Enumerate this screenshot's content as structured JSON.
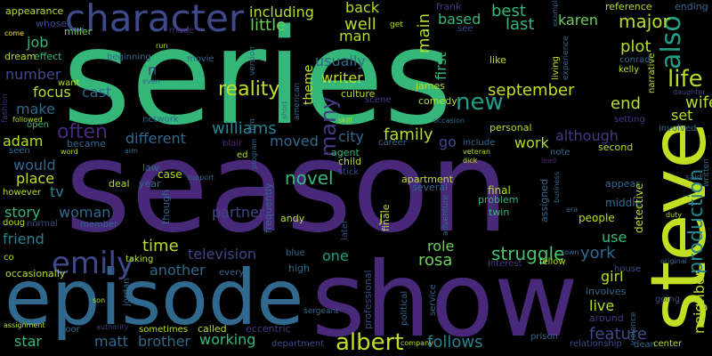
{
  "words": [
    {
      "text": "series",
      "color": "#35b779"
    },
    {
      "text": "season",
      "color": "#482878"
    },
    {
      "text": "show",
      "color": "#482878"
    },
    {
      "text": "episode",
      "color": "#31688e"
    },
    {
      "text": "steve",
      "color": "#c2df23"
    },
    {
      "text": "character",
      "color": "#3e4989"
    },
    {
      "text": "emily",
      "color": "#3e4989"
    },
    {
      "text": "albert",
      "color": "#c2df23"
    },
    {
      "text": "new",
      "color": "#1f9e89"
    },
    {
      "text": "also",
      "color": "#1f9e89"
    },
    {
      "text": "production",
      "color": "#26828e"
    },
    {
      "text": "life",
      "color": "#b5de2b"
    },
    {
      "text": "reality",
      "color": "#c2df23"
    },
    {
      "text": "september",
      "color": "#c2df23"
    },
    {
      "text": "often",
      "color": "#482878"
    },
    {
      "text": "family",
      "color": "#b5de2b"
    },
    {
      "text": "novel",
      "color": "#35b779"
    },
    {
      "text": "many",
      "color": "#443983"
    },
    {
      "text": "williams",
      "color": "#26828e"
    },
    {
      "text": "struggle",
      "color": "#4ac16d"
    },
    {
      "text": "york",
      "color": "#31688e"
    },
    {
      "text": "feature",
      "color": "#3e4989"
    },
    {
      "text": "follows",
      "color": "#26828e"
    },
    {
      "text": "matt",
      "color": "#31688e"
    },
    {
      "text": "brother",
      "color": "#31688e"
    },
    {
      "text": "working",
      "color": "#35b779"
    },
    {
      "text": "another",
      "color": "#31688e"
    },
    {
      "text": "television",
      "color": "#414487"
    },
    {
      "text": "partner",
      "color": "#414487"
    },
    {
      "text": "rosa",
      "color": "#6ece58"
    },
    {
      "text": "role",
      "color": "#6ece58"
    },
    {
      "text": "time",
      "color": "#b5de2b"
    },
    {
      "text": "little",
      "color": "#6ece58"
    },
    {
      "text": "including",
      "color": "#b5de2b"
    },
    {
      "text": "major",
      "color": "#b5de2b"
    },
    {
      "text": "karen",
      "color": "#6ece58"
    },
    {
      "text": "best",
      "color": "#35b779"
    },
    {
      "text": "last",
      "color": "#35b779"
    },
    {
      "text": "based",
      "color": "#35b779"
    },
    {
      "text": "back",
      "color": "#b5de2b"
    },
    {
      "text": "well",
      "color": "#b5de2b"
    },
    {
      "text": "main",
      "color": "#b5de2b"
    },
    {
      "text": "first",
      "color": "#35b779"
    },
    {
      "text": "man",
      "color": "#b5de2b"
    },
    {
      "text": "usually",
      "color": "#31688e"
    },
    {
      "text": "writer",
      "color": "#c2df23"
    },
    {
      "text": "theme",
      "color": "#b5de2b"
    },
    {
      "text": "job",
      "color": "#35b779"
    },
    {
      "text": "number",
      "color": "#3e4989"
    },
    {
      "text": "focus",
      "color": "#b5de2b"
    },
    {
      "text": "cast",
      "color": "#31688e"
    },
    {
      "text": "make",
      "color": "#31688e"
    },
    {
      "text": "adam",
      "color": "#b5de2b"
    },
    {
      "text": "would",
      "color": "#31688e"
    },
    {
      "text": "place",
      "color": "#c2df23"
    },
    {
      "text": "story",
      "color": "#35b779"
    },
    {
      "text": "woman",
      "color": "#31688e"
    },
    {
      "text": "friend",
      "color": "#26828e"
    },
    {
      "text": "tv",
      "color": "#26828e"
    },
    {
      "text": "different",
      "color": "#31688e"
    },
    {
      "text": "moved",
      "color": "#31688e"
    },
    {
      "text": "city",
      "color": "#31688e"
    },
    {
      "text": "work",
      "color": "#b5de2b"
    },
    {
      "text": "although",
      "color": "#443983"
    },
    {
      "text": "plot",
      "color": "#b5de2b"
    },
    {
      "text": "end",
      "color": "#b5de2b"
    },
    {
      "text": "wife",
      "color": "#b5de2b"
    },
    {
      "text": "set",
      "color": "#b5de2b"
    },
    {
      "text": "live",
      "color": "#b5de2b"
    },
    {
      "text": "girl",
      "color": "#b5de2b"
    },
    {
      "text": "use",
      "color": "#35b779"
    },
    {
      "text": "neighbor",
      "color": "#b5de2b"
    },
    {
      "text": "star",
      "color": "#35b779"
    },
    {
      "text": "one",
      "color": "#1f9e89"
    },
    {
      "text": "go",
      "color": "#3e4989"
    },
    {
      "text": "j",
      "color": "#b5de2b"
    },
    {
      "text": "n",
      "color": "#3e4989"
    },
    {
      "text": "appearance",
      "color": "#b5de2b"
    },
    {
      "text": "whose",
      "color": "#3e4989"
    },
    {
      "text": "miller",
      "color": "#6ece58"
    },
    {
      "text": "effect",
      "color": "#35b779"
    },
    {
      "text": "dream",
      "color": "#b5de2b"
    },
    {
      "text": "want",
      "color": "#b5de2b"
    },
    {
      "text": "beginning",
      "color": "#31688e"
    },
    {
      "text": "movie",
      "color": "#31688e"
    },
    {
      "text": "come",
      "color": "#fde725"
    },
    {
      "text": "made",
      "color": "#482878"
    },
    {
      "text": "version",
      "color": "#31688e"
    },
    {
      "text": "film",
      "color": "#31688e"
    },
    {
      "text": "james",
      "color": "#b5de2b"
    },
    {
      "text": "culture",
      "color": "#b5de2b"
    },
    {
      "text": "scene",
      "color": "#443983"
    },
    {
      "text": "comedy",
      "color": "#b5de2b"
    },
    {
      "text": "personal",
      "color": "#b5de2b"
    },
    {
      "text": "career",
      "color": "#31688e"
    },
    {
      "text": "include",
      "color": "#31688e"
    },
    {
      "text": "second",
      "color": "#b5de2b"
    },
    {
      "text": "appear",
      "color": "#31688e"
    },
    {
      "text": "middle",
      "color": "#31688e"
    },
    {
      "text": "people",
      "color": "#b5de2b"
    },
    {
      "text": "detective",
      "color": "#c2df23"
    },
    {
      "text": "final",
      "color": "#b5de2b"
    },
    {
      "text": "problem",
      "color": "#35b779"
    },
    {
      "text": "twin",
      "color": "#35b779"
    },
    {
      "text": "several",
      "color": "#31688e"
    },
    {
      "text": "apartment",
      "color": "#c2df23"
    },
    {
      "text": "assigned",
      "color": "#31688e"
    },
    {
      "text": "frequently",
      "color": "#31688e"
    },
    {
      "text": "andy",
      "color": "#b5de2b"
    },
    {
      "text": "child",
      "color": "#b5de2b"
    },
    {
      "text": "stick",
      "color": "#3e4989"
    },
    {
      "text": "agent",
      "color": "#35b779"
    },
    {
      "text": "blair",
      "color": "#482878"
    },
    {
      "text": "law",
      "color": "#31688e"
    },
    {
      "text": "case",
      "color": "#b5de2b"
    },
    {
      "text": "deal",
      "color": "#b5de2b"
    },
    {
      "text": "year",
      "color": "#31688e"
    },
    {
      "text": "became",
      "color": "#31688e"
    },
    {
      "text": "network",
      "color": "#31688e"
    },
    {
      "text": "american",
      "color": "#31688e"
    },
    {
      "text": "frank",
      "color": "#443983"
    },
    {
      "text": "reference",
      "color": "#b5de2b"
    },
    {
      "text": "ending",
      "color": "#31688e"
    },
    {
      "text": "narrative",
      "color": "#b5de2b"
    },
    {
      "text": "conrad",
      "color": "#31688e"
    },
    {
      "text": "kelly",
      "color": "#b5de2b"
    },
    {
      "text": "setting",
      "color": "#443983"
    },
    {
      "text": "involved",
      "color": "#31688e"
    },
    {
      "text": "written",
      "color": "#31688e"
    },
    {
      "text": "said",
      "color": "#31688e"
    },
    {
      "text": "daughter",
      "color": "#3e4989"
    },
    {
      "text": "living",
      "color": "#c2df23"
    },
    {
      "text": "experience",
      "color": "#31688e"
    },
    {
      "text": "like",
      "color": "#c2df23"
    },
    {
      "text": "see",
      "color": "#3e4989"
    },
    {
      "text": "get",
      "color": "#b5de2b"
    },
    {
      "text": "even",
      "color": "#31688e"
    },
    {
      "text": "run",
      "color": "#b5de2b"
    },
    {
      "text": "fashion",
      "color": "#482878"
    },
    {
      "text": "followed",
      "color": "#b5de2b"
    },
    {
      "text": "open",
      "color": "#35b779"
    },
    {
      "text": "seen",
      "color": "#31688e"
    },
    {
      "text": "word",
      "color": "#b5de2b"
    },
    {
      "text": "however",
      "color": "#b5de2b"
    },
    {
      "text": "doug",
      "color": "#b5de2b"
    },
    {
      "text": "normal",
      "color": "#3e4989"
    },
    {
      "text": "member",
      "color": "#31688e"
    },
    {
      "text": "co",
      "color": "#b5de2b"
    },
    {
      "text": "occasionally",
      "color": "#b5de2b"
    },
    {
      "text": "taking",
      "color": "#b5de2b"
    },
    {
      "text": "every",
      "color": "#31688e"
    },
    {
      "text": "high",
      "color": "#31688e"
    },
    {
      "text": "blue",
      "color": "#31688e"
    },
    {
      "text": "later",
      "color": "#3e4989"
    },
    {
      "text": "finale",
      "color": "#b5de2b"
    },
    {
      "text": "adventure",
      "color": "#31688e"
    },
    {
      "text": "business",
      "color": "#31688e"
    },
    {
      "text": "interest",
      "color": "#443983"
    },
    {
      "text": "fellow",
      "color": "#b5de2b"
    },
    {
      "text": "involves",
      "color": "#31688e"
    },
    {
      "text": "around",
      "color": "#443983"
    },
    {
      "text": "house",
      "color": "#3e4989"
    },
    {
      "text": "going",
      "color": "#3e4989"
    },
    {
      "text": "duty",
      "color": "#b5de2b"
    },
    {
      "text": "original",
      "color": "#31688e"
    },
    {
      "text": "though",
      "color": "#31688e"
    },
    {
      "text": "jordan",
      "color": "#31688e"
    },
    {
      "text": "son",
      "color": "#b5de2b"
    },
    {
      "text": "authority",
      "color": "#443983"
    },
    {
      "text": "sometimes",
      "color": "#b5de2b"
    },
    {
      "text": "called",
      "color": "#b5de2b"
    },
    {
      "text": "eccentric",
      "color": "#443983"
    },
    {
      "text": "department",
      "color": "#3e4989"
    },
    {
      "text": "professional",
      "color": "#3e4989"
    },
    {
      "text": "political",
      "color": "#31688e"
    },
    {
      "text": "service",
      "color": "#31688e"
    },
    {
      "text": "prison",
      "color": "#31688e"
    },
    {
      "text": "relationship",
      "color": "#3e4989"
    },
    {
      "text": "violence",
      "color": "#31688e"
    },
    {
      "text": "dean",
      "color": "#31688e"
    },
    {
      "text": "center",
      "color": "#b5de2b"
    },
    {
      "text": "sergeant",
      "color": "#31688e"
    },
    {
      "text": "assignment",
      "color": "#b5de2b"
    },
    {
      "text": "door",
      "color": "#31688e"
    },
    {
      "text": "company",
      "color": "#b5de2b"
    },
    {
      "text": "skill",
      "color": "#b5de2b"
    },
    {
      "text": "occasion",
      "color": "#31688e"
    },
    {
      "text": "support",
      "color": "#31688e"
    },
    {
      "text": "program",
      "color": "#31688e"
    },
    {
      "text": "dick",
      "color": "#b5de2b"
    },
    {
      "text": "veteran",
      "color": "#b5de2b"
    },
    {
      "text": "note",
      "color": "#31688e"
    },
    {
      "text": "lead",
      "color": "#482878"
    },
    {
      "text": "era",
      "color": "#31688e"
    },
    {
      "text": "town",
      "color": "#31688e"
    },
    {
      "text": "example",
      "color": "#31688e"
    },
    {
      "text": "short",
      "color": "#31688e"
    },
    {
      "text": "ed",
      "color": "#b5de2b"
    },
    {
      "text": "aim",
      "color": "#31688e"
    }
  ]
}
